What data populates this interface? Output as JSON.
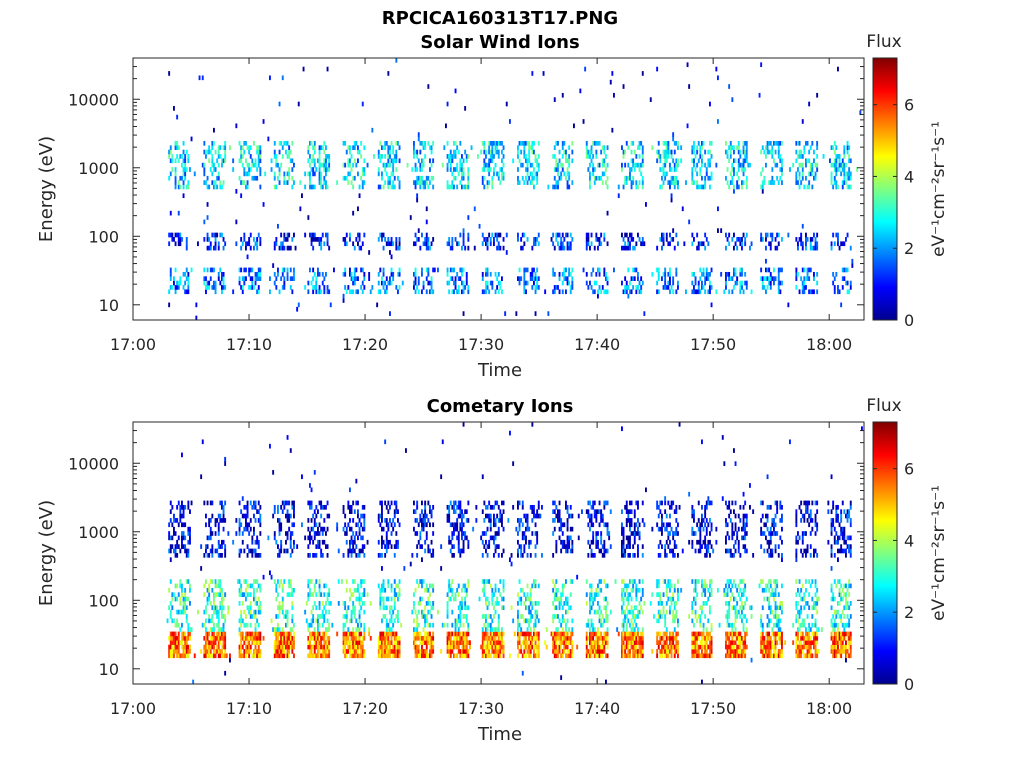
{
  "figure": {
    "title": "RPCICA160313T17.PNG"
  },
  "colorbar": {
    "label": "Flux",
    "unit_text": "eV⁻¹cm⁻²sr⁻¹s⁻¹",
    "ticks": [
      "0",
      "2",
      "4",
      "6"
    ],
    "range": [
      0,
      7.3
    ],
    "colormap": "jet"
  },
  "chart_data": [
    {
      "type": "heatmap",
      "title": "Solar Wind Ions",
      "xlabel": "Time",
      "ylabel": "Energy (eV)",
      "yscale": "log",
      "ylim": [
        6,
        40000
      ],
      "xlim": [
        "17:00",
        "18:03"
      ],
      "xticks": [
        "17:00",
        "17:10",
        "17:20",
        "17:30",
        "17:40",
        "17:50",
        "18:00"
      ],
      "yticks": [
        "10",
        "100",
        "1000",
        "10000"
      ],
      "sweep_start_times": [
        "17:03",
        "17:06",
        "17:09",
        "17:12",
        "17:15",
        "17:18",
        "17:21",
        "17:24",
        "17:27",
        "17:30",
        "17:33",
        "17:36",
        "17:39",
        "17:42",
        "17:45",
        "17:48",
        "17:51",
        "17:54",
        "17:57",
        "18:00"
      ],
      "bands": [
        {
          "energy_range_eV": [
            500,
            2500
          ],
          "flux_typical": 2.5
        },
        {
          "energy_range_eV": [
            60,
            120
          ],
          "flux_typical": 1.2
        },
        {
          "energy_range_eV": [
            15,
            35
          ],
          "flux_typical": 1.8
        }
      ]
    },
    {
      "type": "heatmap",
      "title": "Cometary Ions",
      "xlabel": "Time",
      "ylabel": "Energy (eV)",
      "yscale": "log",
      "ylim": [
        6,
        40000
      ],
      "xlim": [
        "17:00",
        "18:03"
      ],
      "xticks": [
        "17:00",
        "17:10",
        "17:20",
        "17:30",
        "17:40",
        "17:50",
        "18:00"
      ],
      "yticks": [
        "10",
        "100",
        "1000",
        "10000"
      ],
      "sweep_start_times": [
        "17:03",
        "17:06",
        "17:09",
        "17:12",
        "17:15",
        "17:18",
        "17:21",
        "17:24",
        "17:27",
        "17:30",
        "17:33",
        "17:36",
        "17:39",
        "17:42",
        "17:45",
        "17:48",
        "17:51",
        "17:54",
        "17:57",
        "18:00"
      ],
      "bands": [
        {
          "energy_range_eV": [
            15,
            35
          ],
          "flux_typical": 5.5
        },
        {
          "energy_range_eV": [
            35,
            200
          ],
          "flux_typical": 3.0
        },
        {
          "energy_range_eV": [
            400,
            3000
          ],
          "flux_typical": 0.8
        }
      ]
    }
  ]
}
